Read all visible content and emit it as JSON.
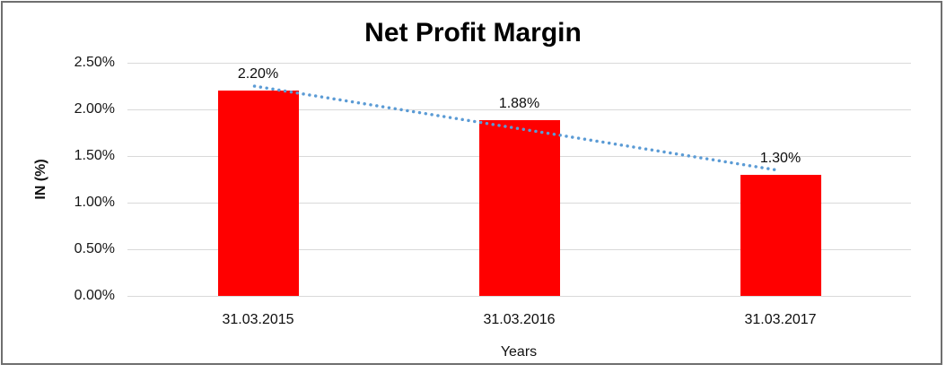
{
  "frame": {
    "border_color": "#6f6f6f"
  },
  "chart_data": {
    "type": "bar",
    "title": "Net Profit Margin",
    "categories": [
      "31.03.2015",
      "31.03.2016",
      "31.03.2017"
    ],
    "values": [
      2.2,
      1.88,
      1.3
    ],
    "data_labels": [
      "2.20%",
      "1.88%",
      "1.30%"
    ],
    "xlabel": "Years",
    "ylabel": "IN (%)",
    "ylim": [
      0,
      2.5
    ],
    "ytick_values": [
      0,
      0.5,
      1.0,
      1.5,
      2.0,
      2.5
    ],
    "ytick_labels": [
      "0.00%",
      "0.50%",
      "1.00%",
      "1.50%",
      "2.00%",
      "2.50%"
    ],
    "grid": true,
    "legend": "none",
    "bar_color": "#ff0000",
    "gridline_color": "#d9d9d9",
    "trendline": {
      "kind": "linear",
      "style": "dotted",
      "color": "#5b9bd5"
    }
  }
}
